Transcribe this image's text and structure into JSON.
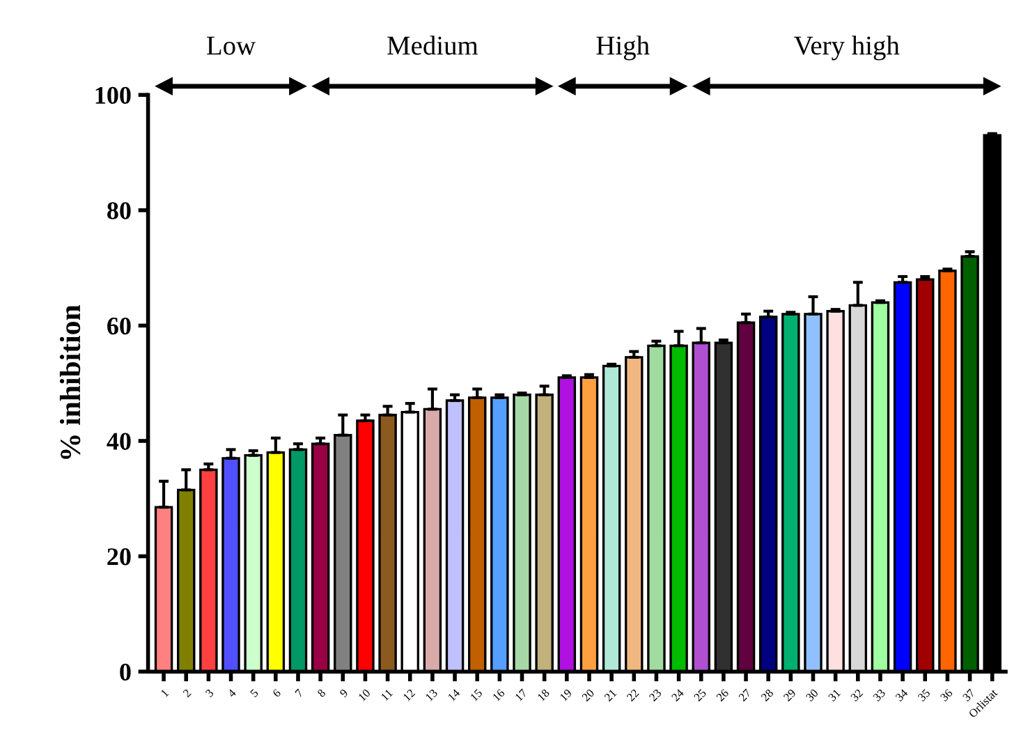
{
  "chart_data": {
    "type": "bar",
    "ylabel": "% inhibition",
    "categories": [
      "1",
      "2",
      "3",
      "4",
      "5",
      "6",
      "7",
      "8",
      "9",
      "10",
      "11",
      "12",
      "13",
      "14",
      "15",
      "16",
      "17",
      "18",
      "19",
      "20",
      "21",
      "22",
      "23",
      "24",
      "25",
      "26",
      "27",
      "28",
      "29",
      "30",
      "31",
      "32",
      "33",
      "34",
      "35",
      "36",
      "37",
      "Orlistat"
    ],
    "values": [
      28.5,
      31.5,
      35,
      37,
      37.5,
      38,
      38.5,
      39.5,
      41,
      43.5,
      44.5,
      45,
      45.5,
      47,
      47.5,
      47.5,
      48,
      48,
      51,
      51,
      53,
      54.5,
      56.5,
      56.5,
      57,
      57,
      60.5,
      61.5,
      62,
      62,
      62.5,
      63.5,
      64,
      67.5,
      68,
      69.5,
      72,
      93
    ],
    "errors": [
      4.5,
      3.5,
      1,
      1.5,
      0.8,
      2.5,
      1,
      1,
      3.5,
      1,
      1.5,
      1.5,
      3.5,
      1,
      1.5,
      0.5,
      0.3,
      1.5,
      0.3,
      0.5,
      0.3,
      1,
      0.8,
      2.5,
      2.5,
      0.5,
      1.5,
      1,
      0.3,
      3,
      0.3,
      4,
      0.3,
      1,
      0.5,
      0.3,
      0.8,
      0.3
    ],
    "colors": [
      "#ff8080",
      "#808000",
      "#ff4040",
      "#5050ff",
      "#ccffcc",
      "#ffff00",
      "#009966",
      "#990044",
      "#808080",
      "#ff0000",
      "#8b5a1e",
      "#ffffff",
      "#d9aaaa",
      "#c0c0ff",
      "#c06000",
      "#55a0ff",
      "#a8d8a8",
      "#c0b27a",
      "#b010e0",
      "#ffa040",
      "#b0e8d8",
      "#f0b880",
      "#a0dca0",
      "#00bb00",
      "#b050d0",
      "#303030",
      "#600040",
      "#000080",
      "#00b070",
      "#90c0ff",
      "#ffe0e0",
      "#d8d8d8",
      "#a0ffa0",
      "#0000ff",
      "#a00000",
      "#ff6600",
      "#006000",
      "#000000"
    ],
    "ylim": [
      0,
      100
    ],
    "yticks": [
      0,
      20,
      40,
      60,
      80,
      100
    ],
    "grid": false,
    "annotations": [
      "Low",
      "Medium",
      "High",
      "Very high"
    ]
  }
}
